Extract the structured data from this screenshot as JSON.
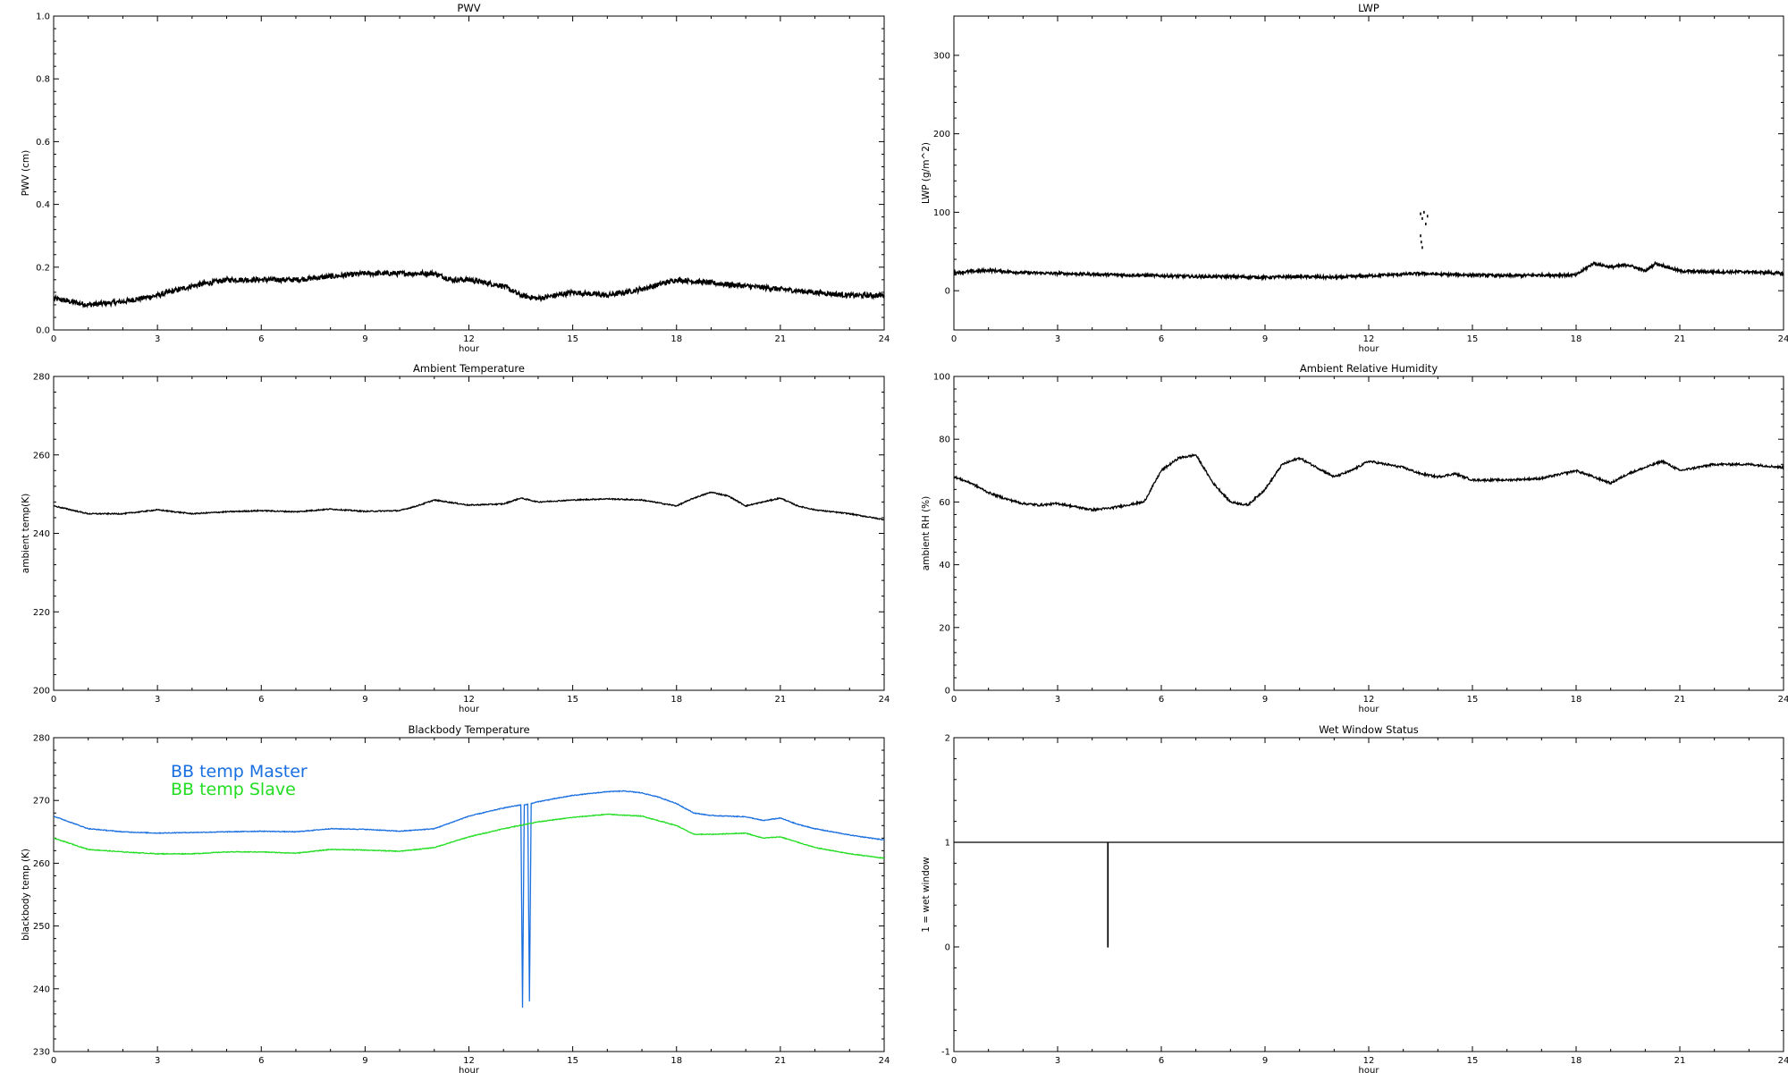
{
  "chart_data": [
    {
      "id": "pwv",
      "type": "line",
      "title": "PWV",
      "xlabel": "hour",
      "ylabel": "PWV (cm)",
      "xlim": [
        0,
        24
      ],
      "ylim": [
        0.0,
        1.0
      ],
      "x_ticks": [
        0,
        3,
        6,
        9,
        12,
        15,
        18,
        21,
        24
      ],
      "y_ticks": [
        "0.0",
        "0.2",
        "0.4",
        "0.6",
        "0.8",
        "1.0"
      ],
      "noise": 0.008,
      "series": [
        {
          "color": "#000000",
          "points": [
            [
              0,
              0.1
            ],
            [
              1,
              0.08
            ],
            [
              2,
              0.09
            ],
            [
              3,
              0.11
            ],
            [
              4,
              0.14
            ],
            [
              5,
              0.16
            ],
            [
              6,
              0.16
            ],
            [
              7,
              0.16
            ],
            [
              8,
              0.17
            ],
            [
              9,
              0.18
            ],
            [
              10,
              0.18
            ],
            [
              11,
              0.18
            ],
            [
              11.5,
              0.16
            ],
            [
              12,
              0.16
            ],
            [
              13,
              0.14
            ],
            [
              13.5,
              0.11
            ],
            [
              14,
              0.1
            ],
            [
              15,
              0.12
            ],
            [
              16,
              0.11
            ],
            [
              17,
              0.13
            ],
            [
              18,
              0.16
            ],
            [
              19,
              0.15
            ],
            [
              20,
              0.14
            ],
            [
              21,
              0.13
            ],
            [
              22,
              0.12
            ],
            [
              23,
              0.11
            ],
            [
              24,
              0.11
            ]
          ]
        }
      ]
    },
    {
      "id": "lwp",
      "type": "line",
      "title": "LWP",
      "xlabel": "hour",
      "ylabel": "LWP (g/m^2)",
      "xlim": [
        0,
        24
      ],
      "ylim": [
        -50,
        350
      ],
      "x_ticks": [
        0,
        3,
        6,
        9,
        12,
        15,
        18,
        21,
        24
      ],
      "y_ticks": [
        "0",
        "100",
        "200",
        "300"
      ],
      "noise": 1.8,
      "series": [
        {
          "color": "#000000",
          "points": [
            [
              0,
              23
            ],
            [
              1,
              26
            ],
            [
              2,
              23
            ],
            [
              3,
              22
            ],
            [
              4,
              21
            ],
            [
              5,
              20
            ],
            [
              6,
              19
            ],
            [
              7,
              18
            ],
            [
              8,
              18
            ],
            [
              9,
              17
            ],
            [
              10,
              18
            ],
            [
              11,
              17
            ],
            [
              12,
              19
            ],
            [
              13,
              21
            ],
            [
              13.5,
              22
            ],
            [
              14,
              21
            ],
            [
              15,
              20
            ],
            [
              16,
              19
            ],
            [
              17,
              20
            ],
            [
              18,
              20
            ],
            [
              18.5,
              35
            ],
            [
              19,
              30
            ],
            [
              19.5,
              33
            ],
            [
              20,
              25
            ],
            [
              20.3,
              35
            ],
            [
              21,
              25
            ],
            [
              22,
              24
            ],
            [
              23,
              24
            ],
            [
              24,
              22
            ]
          ]
        }
      ],
      "scatter": [
        [
          13.5,
          98
        ],
        [
          13.55,
          92
        ],
        [
          13.6,
          100
        ],
        [
          13.65,
          85
        ],
        [
          13.5,
          70
        ],
        [
          13.52,
          62
        ],
        [
          13.55,
          55
        ],
        [
          13.7,
          95
        ]
      ]
    },
    {
      "id": "ambient_temp",
      "type": "line",
      "title": "Ambient Temperature",
      "xlabel": "hour",
      "ylabel": "ambient temp(K)",
      "xlim": [
        0,
        24
      ],
      "ylim": [
        200,
        280
      ],
      "x_ticks": [
        0,
        3,
        6,
        9,
        12,
        15,
        18,
        21,
        24
      ],
      "y_ticks": [
        "200",
        "220",
        "240",
        "260",
        "280"
      ],
      "noise": 0.15,
      "series": [
        {
          "color": "#000000",
          "points": [
            [
              0,
              247
            ],
            [
              1,
              245
            ],
            [
              2,
              245
            ],
            [
              3,
              246
            ],
            [
              4,
              245
            ],
            [
              5,
              245.5
            ],
            [
              6,
              245.8
            ],
            [
              7,
              245.5
            ],
            [
              8,
              246.2
            ],
            [
              9,
              245.6
            ],
            [
              10,
              245.8
            ],
            [
              10.5,
              247
            ],
            [
              11,
              248.5
            ],
            [
              12,
              247.2
            ],
            [
              13,
              247.5
            ],
            [
              13.5,
              249
            ],
            [
              14,
              248
            ],
            [
              15,
              248.5
            ],
            [
              16,
              248.8
            ],
            [
              17,
              248.5
            ],
            [
              18,
              247
            ],
            [
              18.5,
              249
            ],
            [
              19,
              250.5
            ],
            [
              19.5,
              249.5
            ],
            [
              20,
              247
            ],
            [
              21,
              249
            ],
            [
              21.5,
              247
            ],
            [
              22,
              246
            ],
            [
              23,
              245
            ],
            [
              24,
              243.5
            ]
          ]
        }
      ]
    },
    {
      "id": "ambient_rh",
      "type": "line",
      "title": "Ambient Relative Humidity",
      "xlabel": "hour",
      "ylabel": "ambient RH (%)",
      "xlim": [
        0,
        24
      ],
      "ylim": [
        0,
        100
      ],
      "x_ticks": [
        0,
        3,
        6,
        9,
        12,
        15,
        18,
        21,
        24
      ],
      "y_ticks": [
        "0",
        "20",
        "40",
        "60",
        "80",
        "100"
      ],
      "noise": 0.35,
      "series": [
        {
          "color": "#000000",
          "points": [
            [
              0,
              68
            ],
            [
              0.5,
              66
            ],
            [
              1,
              63
            ],
            [
              1.5,
              61
            ],
            [
              2,
              59.5
            ],
            [
              2.5,
              59
            ],
            [
              3,
              59.5
            ],
            [
              3.5,
              58.5
            ],
            [
              4,
              57.5
            ],
            [
              4.5,
              58
            ],
            [
              5,
              59
            ],
            [
              5.5,
              60
            ],
            [
              6,
              70
            ],
            [
              6.5,
              74
            ],
            [
              7,
              75
            ],
            [
              7.5,
              66
            ],
            [
              8,
              60
            ],
            [
              8.5,
              59
            ],
            [
              9,
              64
            ],
            [
              9.5,
              72
            ],
            [
              10,
              74
            ],
            [
              10.5,
              71
            ],
            [
              11,
              68
            ],
            [
              11.5,
              70
            ],
            [
              12,
              73
            ],
            [
              12.5,
              72
            ],
            [
              13,
              71
            ],
            [
              13.5,
              69
            ],
            [
              14,
              68
            ],
            [
              14.5,
              69
            ],
            [
              15,
              67
            ],
            [
              16,
              67
            ],
            [
              17,
              67.5
            ],
            [
              18,
              70
            ],
            [
              18.5,
              68
            ],
            [
              19,
              66
            ],
            [
              19.5,
              69
            ],
            [
              20,
              71
            ],
            [
              20.5,
              73
            ],
            [
              21,
              70
            ],
            [
              22,
              72
            ],
            [
              23,
              72
            ],
            [
              24,
              71
            ]
          ]
        }
      ]
    },
    {
      "id": "bb_temp",
      "type": "line",
      "title": "Blackbody Temperature",
      "xlabel": "hour",
      "ylabel": "blackbody temp (K)",
      "xlim": [
        0,
        24
      ],
      "ylim": [
        230,
        280
      ],
      "x_ticks": [
        0,
        3,
        6,
        9,
        12,
        15,
        18,
        21,
        24
      ],
      "y_ticks": [
        "230",
        "240",
        "250",
        "260",
        "270",
        "280"
      ],
      "noise": 0.06,
      "legend": [
        {
          "label": "BB temp Master",
          "color": "#1a6fe0"
        },
        {
          "label": "BB temp Slave",
          "color": "#22dd22"
        }
      ],
      "series": [
        {
          "name": "BB temp Master",
          "color": "#1a6fe0",
          "points": [
            [
              0,
              267.5
            ],
            [
              1,
              265.5
            ],
            [
              2,
              265
            ],
            [
              3,
              264.8
            ],
            [
              4,
              264.9
            ],
            [
              5,
              265
            ],
            [
              6,
              265.1
            ],
            [
              7,
              265
            ],
            [
              8,
              265.5
            ],
            [
              9,
              265.4
            ],
            [
              10,
              265.1
            ],
            [
              11,
              265.5
            ],
            [
              12,
              267.5
            ],
            [
              13,
              268.8
            ],
            [
              13.5,
              269.3
            ],
            [
              13.55,
              237
            ],
            [
              13.6,
              269.3
            ],
            [
              13.7,
              269.4
            ],
            [
              13.75,
              238
            ],
            [
              13.8,
              269.5
            ],
            [
              14,
              269.8
            ],
            [
              15,
              270.8
            ],
            [
              16,
              271.4
            ],
            [
              16.5,
              271.5
            ],
            [
              17,
              271.2
            ],
            [
              17.5,
              270.5
            ],
            [
              18,
              269.5
            ],
            [
              18.5,
              268
            ],
            [
              19,
              267.6
            ],
            [
              20,
              267.4
            ],
            [
              20.5,
              266.8
            ],
            [
              21,
              267.2
            ],
            [
              21.5,
              266.2
            ],
            [
              22,
              265.5
            ],
            [
              23,
              264.5
            ],
            [
              24,
              263.7
            ]
          ]
        },
        {
          "name": "BB temp Slave",
          "color": "#22dd22",
          "points": [
            [
              0,
              264
            ],
            [
              1,
              262.2
            ],
            [
              2,
              261.8
            ],
            [
              3,
              261.5
            ],
            [
              4,
              261.5
            ],
            [
              5,
              261.8
            ],
            [
              6,
              261.8
            ],
            [
              7,
              261.6
            ],
            [
              8,
              262.2
            ],
            [
              9,
              262.1
            ],
            [
              10,
              261.9
            ],
            [
              11,
              262.5
            ],
            [
              12,
              264.2
            ],
            [
              13,
              265.5
            ],
            [
              14,
              266.6
            ],
            [
              15,
              267.3
            ],
            [
              16,
              267.8
            ],
            [
              17,
              267.5
            ],
            [
              18,
              266
            ],
            [
              18.5,
              264.6
            ],
            [
              19,
              264.6
            ],
            [
              20,
              264.8
            ],
            [
              20.5,
              264
            ],
            [
              21,
              264.2
            ],
            [
              22,
              262.5
            ],
            [
              23,
              261.5
            ],
            [
              24,
              260.8
            ]
          ]
        }
      ]
    },
    {
      "id": "wet_window",
      "type": "line",
      "title": "Wet Window Status",
      "xlabel": "hour",
      "ylabel": "1 = wet window",
      "xlim": [
        0,
        24
      ],
      "ylim": [
        -1,
        2
      ],
      "x_ticks": [
        0,
        3,
        6,
        9,
        12,
        15,
        18,
        21,
        24
      ],
      "y_ticks": [
        "-1",
        "0",
        "1",
        "2"
      ],
      "noise": 0,
      "series": [
        {
          "color": "#000000",
          "points": [
            [
              0,
              1
            ],
            [
              4.45,
              1
            ],
            [
              4.45,
              0
            ],
            [
              4.46,
              0
            ],
            [
              4.46,
              1
            ],
            [
              24,
              1
            ]
          ]
        }
      ]
    }
  ]
}
